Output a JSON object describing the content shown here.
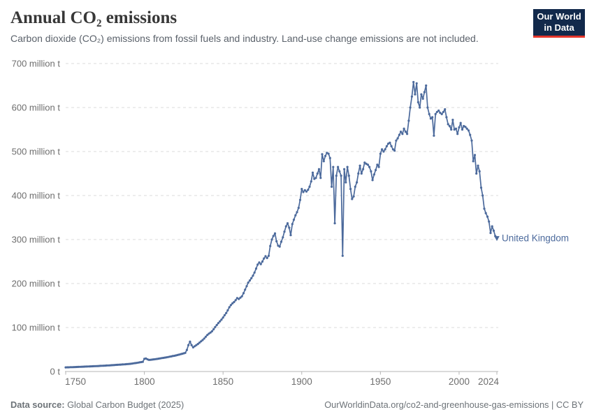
{
  "header": {
    "title": "Annual CO₂ emissions",
    "subtitle": "Carbon dioxide (CO₂) emissions from fossil fuels and industry. Land-use change emissions are not included.",
    "logo": {
      "line1": "Our World",
      "line2": "in Data",
      "bg_color": "#12294b",
      "accent_color": "#e5352b"
    }
  },
  "footer": {
    "source_label": "Data source:",
    "source_value": " Global Carbon Budget (2025)",
    "link": "OurWorldinData.org/co2-and-greenhouse-gas-emissions | CC BY"
  },
  "chart_data": {
    "type": "line",
    "title": "Annual CO₂ emissions",
    "series_label": "United Kingdom",
    "color": "#4C6A9C",
    "grid_color": "#dbdbdb",
    "axis_color": "#b5b5b5",
    "tick_text_color": "#6e6e6e",
    "values_unit": "million tonnes CO₂ per year",
    "x_start": 1750,
    "x_end": 2024,
    "x_step": 1,
    "ylim": [
      0,
      700
    ],
    "grid": "dashed-horizontal",
    "legend_position": "end-of-line",
    "end_marker": "arrow-down",
    "x_ticks": [
      1750,
      1800,
      1850,
      1900,
      1950,
      2000,
      2024
    ],
    "y_ticks": [
      {
        "value": 0,
        "label": "0 t"
      },
      {
        "value": 100,
        "label": "100 million t"
      },
      {
        "value": 200,
        "label": "200 million t"
      },
      {
        "value": 300,
        "label": "300 million t"
      },
      {
        "value": 400,
        "label": "400 million t"
      },
      {
        "value": 500,
        "label": "500 million t"
      },
      {
        "value": 600,
        "label": "600 million t"
      },
      {
        "value": 700,
        "label": "700 million t"
      }
    ],
    "values": [
      9.4,
      9.5,
      9.6,
      9.8,
      9.9,
      10,
      10.2,
      10.3,
      10.5,
      10.6,
      10.8,
      10.9,
      11.1,
      11.2,
      11.4,
      11.6,
      11.7,
      11.9,
      12.1,
      12.3,
      12.4,
      12.6,
      12.8,
      13,
      13.2,
      13.4,
      13.6,
      13.8,
      14,
      14.3,
      14.5,
      14.7,
      15,
      15.2,
      15.5,
      15.7,
      16,
      16.2,
      16.5,
      16.8,
      17.1,
      17.5,
      18,
      18.5,
      19,
      19.6,
      20.2,
      20.8,
      21.4,
      22.1,
      28.8,
      29.5,
      27.6,
      26.4,
      26.7,
      27.1,
      27.6,
      28.1,
      28.6,
      29.2,
      29.8,
      30.4,
      31,
      31.6,
      32.2,
      32.9,
      33.6,
      34.3,
      35,
      35.7,
      36.5,
      37.4,
      38.3,
      39.3,
      40.3,
      41.3,
      42.4,
      49,
      60,
      68,
      60,
      55,
      57.5,
      60,
      62.5,
      65.5,
      68.5,
      71.5,
      75,
      79,
      83,
      86,
      88.5,
      91.5,
      96,
      101,
      105.5,
      110,
      114,
      118,
      122.7,
      128,
      133,
      139,
      146,
      151,
      155,
      158,
      162,
      167,
      165,
      168,
      171,
      178,
      186,
      194,
      202,
      207,
      212,
      218,
      225,
      234,
      243,
      248,
      244,
      250,
      257,
      262,
      258,
      263,
      285,
      300,
      308,
      314,
      296,
      286,
      284,
      295,
      305,
      318,
      330,
      337,
      327,
      310,
      335,
      345,
      355,
      362,
      372,
      390,
      415,
      408,
      412,
      409,
      413,
      420,
      432,
      452,
      438,
      440,
      450,
      460,
      440,
      494,
      478,
      490,
      497,
      495,
      485,
      420,
      465,
      337,
      445,
      465,
      455,
      445,
      263,
      460,
      430,
      465,
      445,
      415,
      392,
      398,
      420,
      430,
      450,
      468,
      450,
      460,
      475,
      472,
      470,
      465,
      455,
      435,
      448,
      458,
      470,
      465,
      495,
      505,
      500,
      505,
      512,
      518,
      520,
      512,
      505,
      502,
      525,
      530,
      538,
      545,
      540,
      552,
      545,
      540,
      570,
      600,
      625,
      658,
      630,
      655,
      612,
      600,
      630,
      620,
      635,
      650,
      600,
      585,
      575,
      578,
      536,
      585,
      590,
      593,
      588,
      585,
      590,
      596,
      578,
      562,
      558,
      550,
      572,
      550,
      552,
      540,
      555,
      565,
      550,
      558,
      556,
      552,
      548,
      538,
      525,
      478,
      492,
      450,
      468,
      455,
      418,
      400,
      370,
      360,
      352,
      341,
      315,
      330,
      320,
      308,
      303
    ]
  }
}
